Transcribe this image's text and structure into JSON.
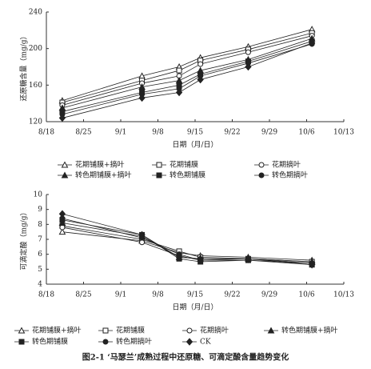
{
  "chart_data": [
    {
      "type": "line",
      "ylabel": "还原糖含量（mg/g）",
      "xlabel": "日期（月/日）",
      "x": [
        "8/21",
        "9/5",
        "9/12",
        "9/16",
        "9/25",
        "10/7"
      ],
      "xlim": [
        "8/18",
        "10/13"
      ],
      "xticks": [
        "8/18",
        "8/25",
        "9/1",
        "9/8",
        "9/15",
        "9/22",
        "9/29",
        "10/6",
        "10/13"
      ],
      "ylim": [
        120,
        240
      ],
      "yticks": [
        120,
        160,
        200,
        240
      ],
      "series": [
        {
          "name": "花期铺膜+摘叶",
          "marker": "triangle-open",
          "color": "#222",
          "values": [
            143,
            170,
            180,
            190,
            202,
            221
          ]
        },
        {
          "name": "花期铺膜",
          "marker": "square-open",
          "color": "#222",
          "values": [
            141,
            165,
            176,
            187,
            199,
            217
          ]
        },
        {
          "name": "花期摘叶",
          "marker": "circle-open",
          "color": "#222",
          "values": [
            138,
            162,
            170,
            183,
            196,
            214
          ]
        },
        {
          "name": "转色期铺膜+摘叶",
          "marker": "triangle",
          "color": "#222",
          "values": [
            135,
            158,
            165,
            176,
            188,
            211
          ]
        },
        {
          "name": "转色期铺膜",
          "marker": "square",
          "color": "#222",
          "values": [
            131,
            152,
            160,
            172,
            186,
            208
          ]
        },
        {
          "name": "转色期摘叶",
          "marker": "circle",
          "color": "#222",
          "values": [
            128,
            150,
            156,
            170,
            184,
            205
          ]
        },
        {
          "marker": "diamond",
          "color": "#222",
          "values": [
            124,
            146,
            152,
            166,
            180,
            206
          ]
        }
      ]
    },
    {
      "type": "line",
      "ylabel": "可滴定酸（mg/g）",
      "xlabel": "日期（月/日）",
      "x": [
        "8/21",
        "9/5",
        "9/12",
        "9/16",
        "9/25",
        "10/7"
      ],
      "xlim": [
        "8/18",
        "10/13"
      ],
      "xticks": [
        "8/18",
        "8/25",
        "9/1",
        "9/8",
        "9/15",
        "9/22",
        "9/29",
        "10/6",
        "10/13"
      ],
      "ylim": [
        4,
        10
      ],
      "yticks": [
        4,
        5,
        6,
        7,
        8,
        9,
        10
      ],
      "series": [
        {
          "name": "花期铺膜+摘叶",
          "marker": "triangle-open",
          "color": "#222",
          "values": [
            7.5,
            6.9,
            6.1,
            5.9,
            5.8,
            5.6
          ]
        },
        {
          "name": "花期铺膜",
          "marker": "square-open",
          "color": "#222",
          "values": [
            7.9,
            7.0,
            6.2,
            5.8,
            5.7,
            5.5
          ]
        },
        {
          "name": "花期摘叶",
          "marker": "circle-open",
          "color": "#222",
          "values": [
            7.8,
            6.8,
            5.9,
            5.6,
            5.6,
            5.4
          ]
        },
        {
          "name": "转色期铺膜+摘叶",
          "marker": "triangle",
          "color": "#222",
          "values": [
            8.1,
            7.2,
            5.8,
            5.7,
            5.7,
            5.5
          ]
        },
        {
          "name": "转色期铺膜",
          "marker": "square",
          "color": "#222",
          "values": [
            8.3,
            7.3,
            5.7,
            5.5,
            5.6,
            5.3
          ]
        },
        {
          "name": "转色期摘叶",
          "marker": "circle",
          "color": "#222",
          "values": [
            8.4,
            7.1,
            6.0,
            5.6,
            5.7,
            5.4
          ]
        },
        {
          "name": "CK",
          "marker": "diamond",
          "color": "#222",
          "values": [
            8.7,
            7.3,
            5.8,
            5.7,
            5.7,
            5.3
          ]
        }
      ]
    }
  ],
  "caption": "图2-1 ‘马瑟兰’成熟过程中还原糖、可滴定酸含量趋势变化"
}
